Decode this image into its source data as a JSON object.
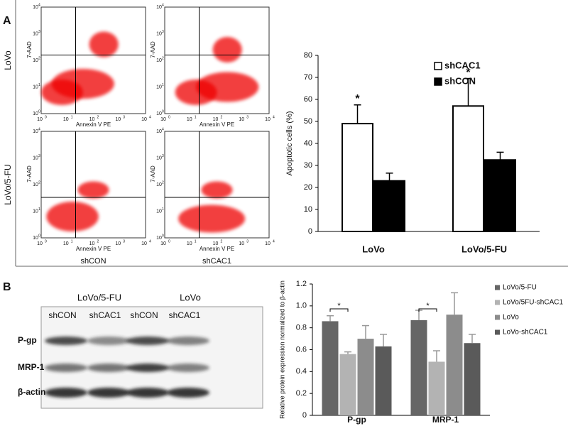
{
  "panel_labels": [
    "A",
    "B"
  ],
  "flow": {
    "row_labels": [
      "LoVo",
      "LoVo/5-FU"
    ],
    "col_labels": [
      "shCON",
      "shCAC1"
    ],
    "x_label": "Annexin V PE",
    "y_label": "7-AAD",
    "tick_base": "10",
    "tick_exponents": [
      "0",
      "1",
      "2",
      "3",
      "4"
    ]
  },
  "blot": {
    "groups": [
      "LoVo/5-FU",
      "LoVo"
    ],
    "lanes": [
      "shCON",
      "shCAC1",
      "shCON",
      "shCAC1"
    ],
    "rows": [
      "P-gp",
      "MRP-1",
      "β-actin"
    ]
  },
  "chart_data": [
    {
      "type": "bar",
      "y_label": "Apoptotic cells (%)",
      "categories": [
        "LoVo",
        "LoVo/5-FU"
      ],
      "series": [
        {
          "name": "shCAC1",
          "color": "#ffffff",
          "values": [
            49,
            57
          ],
          "errors": [
            8.5,
            12.5
          ],
          "markers": [
            "*",
            "*"
          ]
        },
        {
          "name": "shCON",
          "color": "#000000",
          "values": [
            23,
            32.5
          ],
          "errors": [
            3.5,
            3.5
          ]
        }
      ],
      "ylim": [
        0,
        80
      ],
      "yticks": [
        0,
        10,
        20,
        30,
        40,
        50,
        60,
        70,
        80
      ],
      "legend": "top-right"
    },
    {
      "type": "bar",
      "y_label": "Relative protein expression normalized to β-actin",
      "categories": [
        "P-gp",
        "MRP-1"
      ],
      "series": [
        {
          "name": "LoVo/5-FU",
          "color": "#666666",
          "values": [
            0.86,
            0.87
          ],
          "errors": [
            0.05,
            0.09
          ]
        },
        {
          "name": "LoVo/5FU-shCAC1",
          "color": "#b3b3b3",
          "values": [
            0.56,
            0.49
          ],
          "errors": [
            0.02,
            0.1
          ]
        },
        {
          "name": "LoVo",
          "color": "#8c8c8c",
          "values": [
            0.7,
            0.92
          ],
          "errors": [
            0.12,
            0.2
          ]
        },
        {
          "name": "LoVo-shCAC1",
          "color": "#5a5a5a",
          "values": [
            0.63,
            0.66
          ],
          "errors": [
            0.11,
            0.08
          ]
        }
      ],
      "significance": [
        "*",
        "*"
      ],
      "ylim": [
        0,
        1.2
      ],
      "yticks": [
        0,
        0.2,
        0.4,
        0.6,
        0.8,
        {
          "value": 1,
          "label": "1.0"
        },
        1.2
      ],
      "legend": "right"
    }
  ]
}
